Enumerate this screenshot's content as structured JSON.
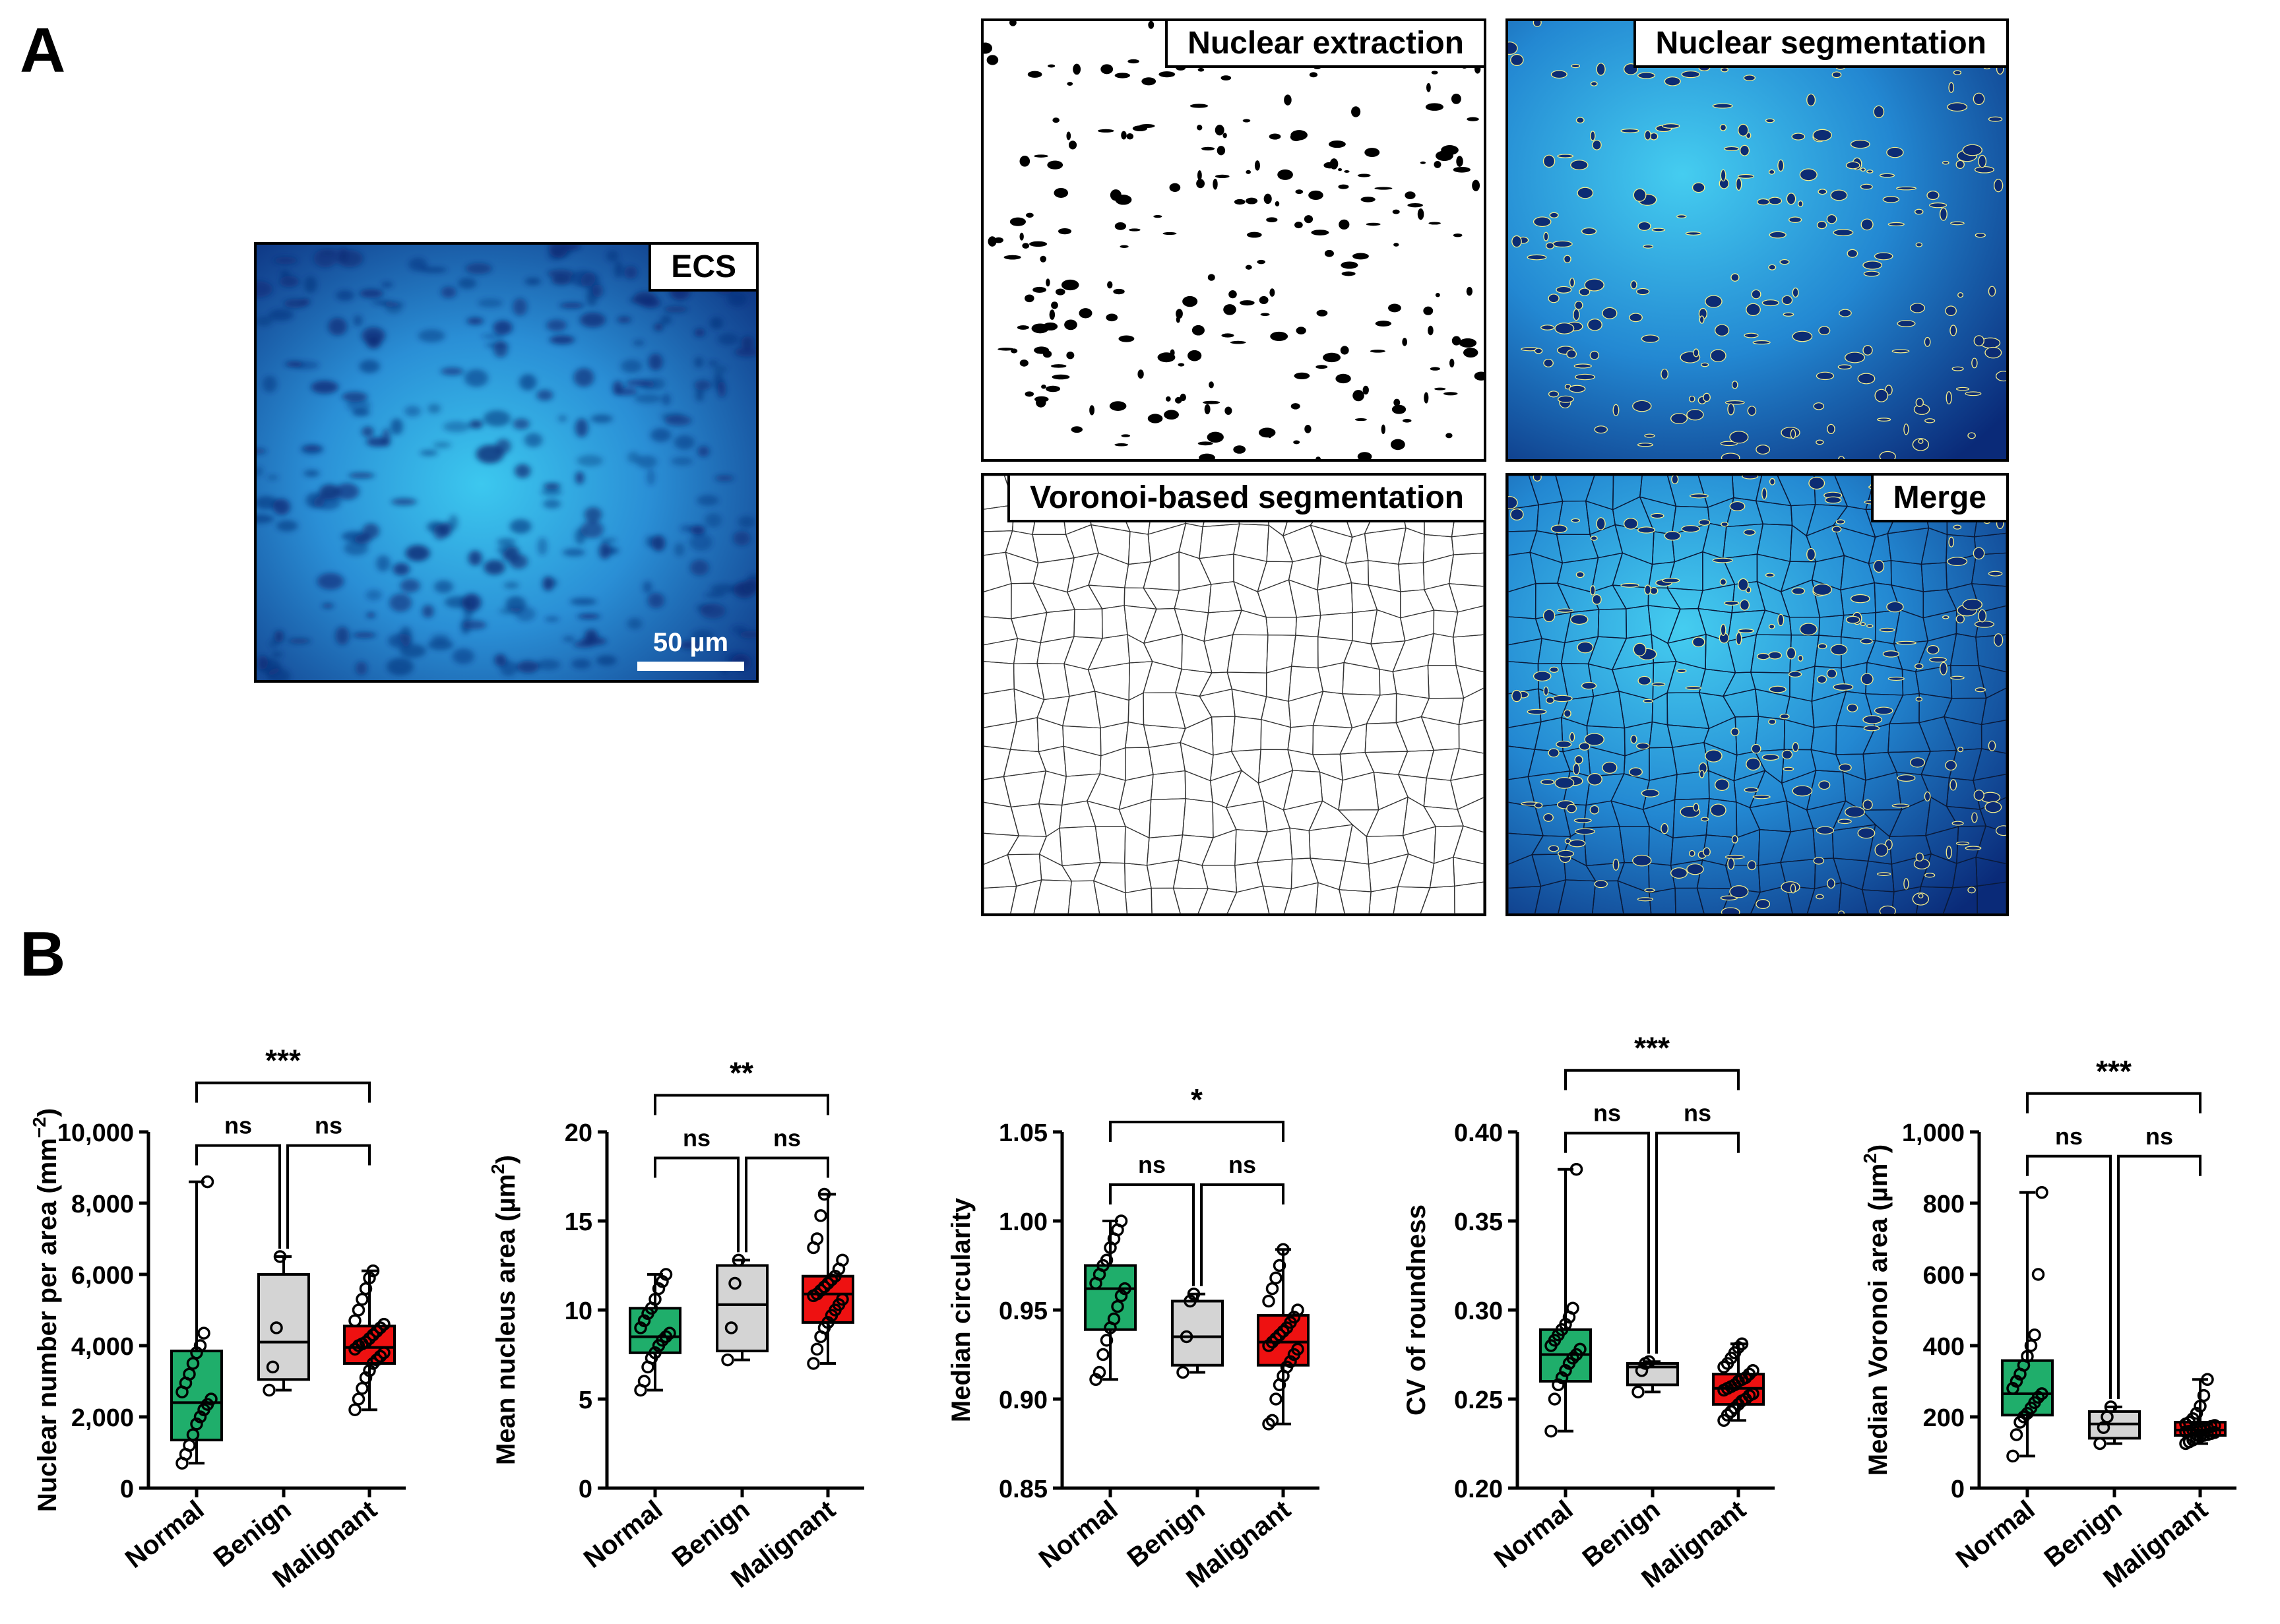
{
  "figure": {
    "panel_a": "A",
    "panel_b": "B"
  },
  "images": {
    "ecs": {
      "label": "ECS",
      "scalebar": "50 µm"
    },
    "nuclear_extraction": {
      "label": "Nuclear extraction"
    },
    "nuclear_segmentation": {
      "label": "Nuclear segmentation"
    },
    "voronoi": {
      "label": "Voronoi-based segmentation"
    },
    "merge": {
      "label": "Merge"
    }
  },
  "colors": {
    "normal": "#1fae6b",
    "benign": "#d4d4d4",
    "malignant": "#ee1111",
    "tissue_dark": "#0b2d78",
    "tissue_light": "#3fc8ef"
  },
  "chart_data": [
    {
      "type": "box",
      "ylabel": "Nuclear number per area (mm",
      "ylabel_sup": "−2",
      "ylabel_tail": ")",
      "categories": [
        "Normal",
        "Benign",
        "Malignant"
      ],
      "ylim": [
        0,
        10000
      ],
      "yticks": [
        0,
        2000,
        4000,
        6000,
        8000,
        10000
      ],
      "ytick_labels": [
        "0",
        "2,000",
        "4,000",
        "6,000",
        "8,000",
        "10,000"
      ],
      "boxes": [
        {
          "name": "Normal",
          "min": 700,
          "q1": 1350,
          "median": 2400,
          "q3": 3850,
          "max": 8600
        },
        {
          "name": "Benign",
          "min": 2750,
          "q1": 3050,
          "median": 4100,
          "q3": 6000,
          "max": 6500
        },
        {
          "name": "Malignant",
          "min": 2200,
          "q1": 3500,
          "median": 3950,
          "q3": 4550,
          "max": 6100
        }
      ],
      "points": [
        [
          700,
          950,
          1200,
          1500,
          1800,
          2000,
          2200,
          2350,
          2500,
          2700,
          2950,
          3200,
          3500,
          3800,
          4000,
          4350,
          8600
        ],
        [
          2750,
          3400,
          4500,
          6500
        ],
        [
          2200,
          2500,
          2800,
          3100,
          3300,
          3500,
          3600,
          3700,
          3800,
          3900,
          4000,
          4050,
          4100,
          4200,
          4300,
          4400,
          4500,
          4600,
          4700,
          5000,
          5300,
          5600,
          5900,
          6100
        ]
      ],
      "significance": {
        "overall": "***",
        "left": "ns",
        "right": "ns"
      }
    },
    {
      "type": "box",
      "ylabel": "Mean nucleus area (µm",
      "ylabel_sup": "2",
      "ylabel_tail": ")",
      "categories": [
        "Normal",
        "Benign",
        "Malignant"
      ],
      "ylim": [
        0,
        20
      ],
      "yticks": [
        0,
        5,
        10,
        15,
        20
      ],
      "ytick_labels": [
        "0",
        "5",
        "10",
        "15",
        "20"
      ],
      "boxes": [
        {
          "name": "Normal",
          "min": 5.5,
          "q1": 7.6,
          "median": 8.5,
          "q3": 10.1,
          "max": 12.0
        },
        {
          "name": "Benign",
          "min": 7.2,
          "q1": 7.7,
          "median": 10.3,
          "q3": 12.5,
          "max": 12.8
        },
        {
          "name": "Malignant",
          "min": 7.0,
          "q1": 9.3,
          "median": 10.9,
          "q3": 11.9,
          "max": 16.5
        }
      ],
      "points": [
        [
          5.5,
          6.0,
          6.8,
          7.3,
          7.6,
          8.0,
          8.3,
          8.5,
          8.7,
          9.0,
          9.4,
          9.8,
          10.1,
          10.6,
          11.2,
          11.6,
          12.0
        ],
        [
          7.2,
          9.0,
          11.5,
          12.8
        ],
        [
          7.0,
          7.8,
          8.5,
          9.0,
          9.3,
          9.7,
          10.0,
          10.3,
          10.6,
          10.8,
          10.9,
          11.1,
          11.3,
          11.5,
          11.7,
          11.9,
          12.3,
          12.8,
          13.5,
          14.0,
          15.3,
          16.5
        ]
      ],
      "significance": {
        "overall": "**",
        "left": "ns",
        "right": "ns"
      }
    },
    {
      "type": "box",
      "ylabel": "Median circularity",
      "ylabel_sup": "",
      "ylabel_tail": "",
      "categories": [
        "Normal",
        "Benign",
        "Malignant"
      ],
      "ylim": [
        0.85,
        1.05
      ],
      "yticks": [
        0.85,
        0.9,
        0.95,
        1.0,
        1.05
      ],
      "ytick_labels": [
        "0.85",
        "0.90",
        "0.95",
        "1.00",
        "1.05"
      ],
      "boxes": [
        {
          "name": "Normal",
          "min": 0.911,
          "q1": 0.939,
          "median": 0.962,
          "q3": 0.975,
          "max": 1.0
        },
        {
          "name": "Benign",
          "min": 0.915,
          "q1": 0.919,
          "median": 0.935,
          "q3": 0.955,
          "max": 0.959
        },
        {
          "name": "Malignant",
          "min": 0.886,
          "q1": 0.919,
          "median": 0.932,
          "q3": 0.947,
          "max": 0.984
        }
      ],
      "points": [
        [
          0.911,
          0.915,
          0.925,
          0.933,
          0.94,
          0.945,
          0.952,
          0.958,
          0.962,
          0.965,
          0.97,
          0.975,
          0.978,
          0.985,
          0.99,
          0.995,
          1.0
        ],
        [
          0.915,
          0.935,
          0.955,
          0.959
        ],
        [
          0.886,
          0.888,
          0.9,
          0.908,
          0.913,
          0.918,
          0.921,
          0.925,
          0.928,
          0.93,
          0.932,
          0.934,
          0.936,
          0.938,
          0.94,
          0.943,
          0.946,
          0.95,
          0.955,
          0.962,
          0.968,
          0.975,
          0.984
        ]
      ],
      "significance": {
        "overall": "*",
        "left": "ns",
        "right": "ns"
      }
    },
    {
      "type": "box",
      "ylabel": "CV of roundness",
      "ylabel_sup": "",
      "ylabel_tail": "",
      "categories": [
        "Normal",
        "Benign",
        "Malignant"
      ],
      "ylim": [
        0.2,
        0.4
      ],
      "yticks": [
        0.2,
        0.25,
        0.3,
        0.35,
        0.4
      ],
      "ytick_labels": [
        "0.20",
        "0.25",
        "0.30",
        "0.35",
        "0.40"
      ],
      "boxes": [
        {
          "name": "Normal",
          "min": 0.232,
          "q1": 0.26,
          "median": 0.275,
          "q3": 0.289,
          "max": 0.379
        },
        {
          "name": "Benign",
          "min": 0.254,
          "q1": 0.258,
          "median": 0.268,
          "q3": 0.27,
          "max": 0.271
        },
        {
          "name": "Malignant",
          "min": 0.238,
          "q1": 0.247,
          "median": 0.256,
          "q3": 0.264,
          "max": 0.281
        }
      ],
      "points": [
        [
          0.232,
          0.25,
          0.258,
          0.262,
          0.266,
          0.27,
          0.273,
          0.275,
          0.278,
          0.28,
          0.283,
          0.286,
          0.289,
          0.292,
          0.296,
          0.301,
          0.379
        ],
        [
          0.254,
          0.266,
          0.27,
          0.271
        ],
        [
          0.238,
          0.241,
          0.243,
          0.245,
          0.247,
          0.249,
          0.25,
          0.252,
          0.253,
          0.255,
          0.256,
          0.257,
          0.258,
          0.26,
          0.261,
          0.262,
          0.264,
          0.266,
          0.268,
          0.27,
          0.273,
          0.276,
          0.279,
          0.281
        ]
      ],
      "significance": {
        "overall": "***",
        "left": "ns",
        "right": "ns"
      }
    },
    {
      "type": "box",
      "ylabel": "Median Voronoi area (µm",
      "ylabel_sup": "2",
      "ylabel_tail": ")",
      "categories": [
        "Normal",
        "Benign",
        "Malignant"
      ],
      "ylim": [
        0,
        1000
      ],
      "yticks": [
        0,
        200,
        400,
        600,
        800,
        1000
      ],
      "ytick_labels": [
        "0",
        "200",
        "400",
        "600",
        "800",
        "1,000"
      ],
      "boxes": [
        {
          "name": "Normal",
          "min": 90,
          "q1": 205,
          "median": 265,
          "q3": 358,
          "max": 830
        },
        {
          "name": "Benign",
          "min": 125,
          "q1": 140,
          "median": 180,
          "q3": 215,
          "max": 228
        },
        {
          "name": "Malignant",
          "min": 125,
          "q1": 148,
          "median": 163,
          "q3": 185,
          "max": 305
        }
      ],
      "points": [
        [
          90,
          150,
          185,
          200,
          210,
          225,
          240,
          255,
          265,
          280,
          300,
          320,
          345,
          370,
          400,
          430,
          600,
          830
        ],
        [
          125,
          170,
          200,
          228
        ],
        [
          125,
          130,
          135,
          140,
          145,
          148,
          150,
          153,
          156,
          158,
          160,
          162,
          164,
          166,
          168,
          170,
          173,
          176,
          180,
          185,
          195,
          210,
          230,
          260,
          305
        ]
      ],
      "significance": {
        "overall": "***",
        "left": "ns",
        "right": "ns"
      }
    }
  ]
}
